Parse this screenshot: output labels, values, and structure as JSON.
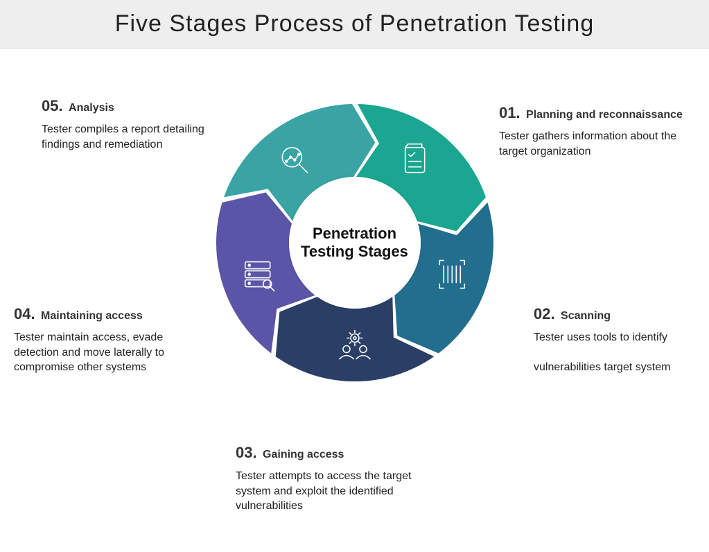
{
  "title": "Five Stages Process of Penetration Testing",
  "center_label": "Penetration Testing Stages",
  "ring": {
    "outer_radius": 200,
    "inner_radius": 95,
    "rotation_offset_deg": -90,
    "segments": [
      {
        "id": "seg-1",
        "color": "#1aa690",
        "icon": "checklist-icon"
      },
      {
        "id": "seg-2",
        "color": "#226e8e",
        "icon": "barcode-icon"
      },
      {
        "id": "seg-3",
        "color": "#2a3e66",
        "icon": "team-gear-icon"
      },
      {
        "id": "seg-4",
        "color": "#5a55a6",
        "icon": "server-wrench-icon"
      },
      {
        "id": "seg-5",
        "color": "#3aa3a3",
        "icon": "magnify-chart-icon"
      }
    ]
  },
  "stages": [
    {
      "num": "01.",
      "title": "Planning and reconnaissance",
      "desc": "Tester gathers information about the target organization",
      "pos": "pos-1"
    },
    {
      "num": "02.",
      "title": "Scanning",
      "desc": "Tester uses tools to identify\n\nvulnerabilities target system",
      "pos": "pos-2"
    },
    {
      "num": "03.",
      "title": "Gaining access",
      "desc": "Tester attempts to access the target system and exploit the identified vulnerabilities",
      "pos": "pos-3"
    },
    {
      "num": "04.",
      "title": "Maintaining access",
      "desc": "Tester maintain access, evade detection and move laterally to compromise other systems",
      "pos": "pos-4"
    },
    {
      "num": "05.",
      "title": "Analysis",
      "desc": "Tester compiles a report detailing findings and remediation",
      "pos": "pos-5"
    }
  ],
  "typography": {
    "title_fontsize": 34,
    "center_fontsize": 22,
    "num_fontsize": 22,
    "stage_title_fontsize": 16,
    "desc_fontsize": 16
  },
  "colors": {
    "title_bg": "#eeeeee",
    "background": "#ffffff",
    "text": "#222222"
  }
}
